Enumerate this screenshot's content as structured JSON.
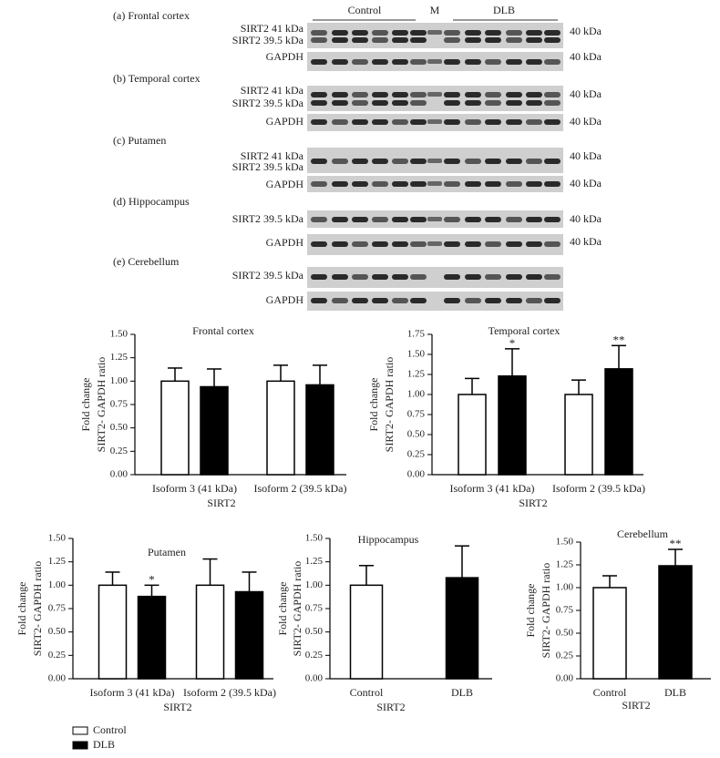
{
  "blots": {
    "header": {
      "control": "Control",
      "marker": "M",
      "dlb": "DLB"
    },
    "panels": [
      {
        "title": "(a) Frontal cortex",
        "rows": [
          {
            "labels": [
              "SIRT2 41 kDa",
              "SIRT2 39.5 kDa"
            ],
            "size": "40 kDa"
          },
          {
            "labels": [
              "GAPDH"
            ],
            "size": "40 kDa"
          }
        ]
      },
      {
        "title": "(b) Temporal cortex",
        "rows": [
          {
            "labels": [
              "SIRT2 41 kDa",
              "SIRT2 39.5 kDa"
            ],
            "size": "40 kDa"
          },
          {
            "labels": [
              "GAPDH"
            ],
            "size": "40 kDa"
          }
        ]
      },
      {
        "title": "(c) Putamen",
        "rows": [
          {
            "labels": [
              "SIRT2 41 kDa",
              "SIRT2 39.5 kDa"
            ],
            "size": "40 kDa"
          },
          {
            "labels": [
              "GAPDH"
            ],
            "size": "40 kDa"
          }
        ]
      },
      {
        "title": "(d) Hippocampus",
        "rows": [
          {
            "labels": [
              "SIRT2 39.5 kDa"
            ],
            "size": "40 kDa"
          },
          {
            "labels": [
              "GAPDH"
            ],
            "size": "40 kDa"
          }
        ]
      },
      {
        "title": "(e) Cerebellum",
        "rows": [
          {
            "labels": [
              "SIRT2 39.5 kDa"
            ]
          },
          {
            "labels": [
              "GAPDH"
            ]
          }
        ]
      }
    ]
  },
  "chart_data": [
    {
      "type": "bar",
      "title": "Frontal cortex",
      "ylabel": [
        "Fold change",
        "SIRT2- GAPDH ratio"
      ],
      "xlabel": "SIRT2",
      "categories": [
        "Isoform 3 (41 kDa)",
        "Isoform 2 (39.5 kDa)"
      ],
      "series": [
        {
          "name": "Control",
          "color": "#ffffff",
          "values": [
            1.0,
            1.0
          ],
          "errors": [
            0.14,
            0.17
          ]
        },
        {
          "name": "DLB",
          "color": "#000000",
          "values": [
            0.94,
            0.96
          ],
          "errors": [
            0.19,
            0.21
          ]
        }
      ],
      "ylim": [
        0,
        1.5
      ],
      "yticks": [
        {
          "value": 0,
          "label": "0.00"
        },
        0.25,
        {
          "value": 0.5,
          "label": "0.50"
        },
        0.75,
        {
          "value": 1,
          "label": "1.00"
        },
        1.25,
        {
          "value": 1.5,
          "label": "1.50"
        }
      ],
      "legend": "bottom-left"
    },
    {
      "type": "bar",
      "title": "Temporal cortex",
      "ylabel": [
        "Fold change",
        "SIRT2- GAPDH ratio"
      ],
      "xlabel": "SIRT2",
      "categories": [
        "Isoform 3 (41 kDa)",
        "Isoform 2 (39.5 kDa)"
      ],
      "series": [
        {
          "name": "Control",
          "color": "#ffffff",
          "values": [
            1.0,
            1.0
          ],
          "errors": [
            0.2,
            0.18
          ]
        },
        {
          "name": "DLB",
          "color": "#000000",
          "values": [
            1.23,
            1.32
          ],
          "errors": [
            0.34,
            0.29
          ],
          "annotations": [
            "*",
            "**"
          ]
        }
      ],
      "ylim": [
        0,
        1.75
      ],
      "yticks": [
        {
          "value": 0,
          "label": "0.00"
        },
        0.25,
        {
          "value": 0.5,
          "label": "0.50"
        },
        0.75,
        {
          "value": 1,
          "label": "1.00"
        },
        1.25,
        {
          "value": 1.5,
          "label": "1.50"
        },
        1.75
      ]
    },
    {
      "type": "bar",
      "title": "Putamen",
      "ylabel": [
        "Fold change",
        "SIRT2- GAPDH ratio"
      ],
      "xlabel": "SIRT2",
      "categories": [
        "Isoform 3 (41 kDa)",
        "Isoform 2 (39.5 kDa)"
      ],
      "series": [
        {
          "name": "Control",
          "color": "#ffffff",
          "values": [
            1.0,
            1.0
          ],
          "errors": [
            0.14,
            0.28
          ]
        },
        {
          "name": "DLB",
          "color": "#000000",
          "values": [
            0.88,
            0.93
          ],
          "errors": [
            0.12,
            0.21
          ],
          "annotations": [
            "*",
            null
          ]
        }
      ],
      "ylim": [
        0,
        1.5
      ],
      "yticks": [
        {
          "value": 0,
          "label": "0.00"
        },
        0.25,
        {
          "value": 0.5,
          "label": "0.50"
        },
        0.75,
        {
          "value": 1,
          "label": "1.00"
        },
        1.25,
        {
          "value": 1.5,
          "label": "1.50"
        }
      ]
    },
    {
      "type": "bar",
      "title": "Hippocampus",
      "ylabel": [
        "Fold change",
        "SIRT2- GAPDH ratio"
      ],
      "xlabel": "SIRT2",
      "categories": [
        "Control",
        "DLB"
      ],
      "values": [
        1.0,
        1.08
      ],
      "errors": [
        0.21,
        0.34
      ],
      "colors": [
        "#ffffff",
        "#000000"
      ],
      "ylim": [
        0,
        1.5
      ],
      "yticks": [
        {
          "value": 0,
          "label": "0.00"
        },
        0.25,
        {
          "value": 0.5,
          "label": "0.50"
        },
        0.75,
        {
          "value": 1,
          "label": "1.00"
        },
        1.25,
        {
          "value": 1.5,
          "label": "1.50"
        }
      ]
    },
    {
      "type": "bar",
      "title": "Cerebellum",
      "ylabel": [
        "Fold change",
        "SIRT2- GAPDH ratio"
      ],
      "xlabel": "SIRT2",
      "categories": [
        "Control",
        "DLB"
      ],
      "values": [
        1.0,
        1.24
      ],
      "errors": [
        0.13,
        0.18
      ],
      "colors": [
        "#ffffff",
        "#000000"
      ],
      "annotations": [
        null,
        "**"
      ],
      "ylim": [
        0,
        1.5
      ],
      "yticks": [
        {
          "value": 0,
          "label": "0.00"
        },
        0.25,
        {
          "value": 0.5,
          "label": "0.50"
        },
        0.75,
        {
          "value": 1,
          "label": "1.00"
        },
        1.25,
        {
          "value": 1.5,
          "label": "1.50"
        }
      ]
    }
  ]
}
